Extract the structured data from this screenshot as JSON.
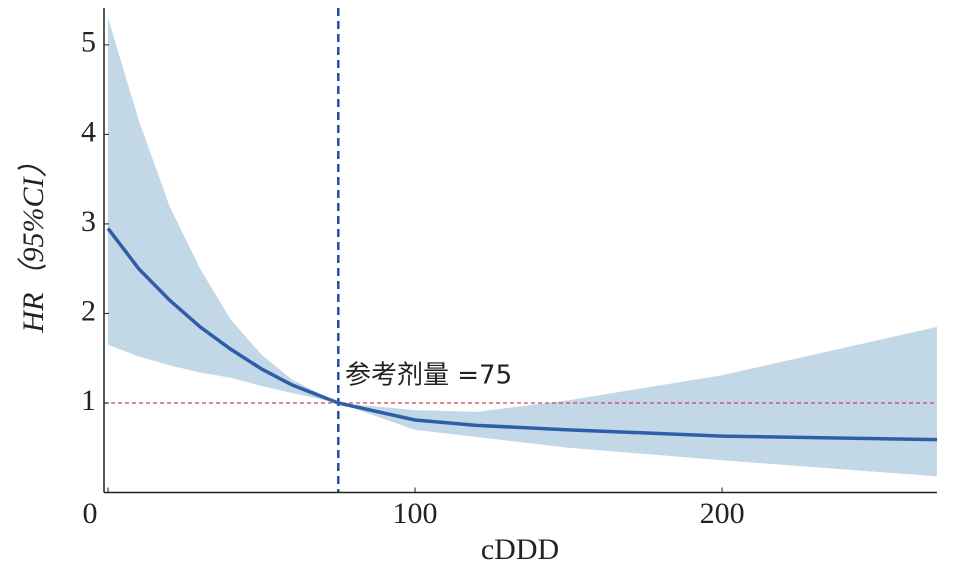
{
  "chart_data": {
    "type": "line",
    "x_label": "cDDD",
    "y_label": "HR（95%CI）",
    "x": [
      0,
      10,
      20,
      30,
      40,
      50,
      60,
      75,
      100,
      120,
      150,
      200,
      270
    ],
    "series": [
      {
        "color": "#2f5ea8",
        "values": [
          2.95,
          2.5,
          2.15,
          1.85,
          1.6,
          1.38,
          1.2,
          1,
          0.81,
          0.75,
          0.7,
          0.63,
          0.59
        ]
      }
    ],
    "band": {
      "color": "#c3d8e7",
      "lower": [
        1.65,
        1.52,
        1.42,
        1.34,
        1.28,
        1.19,
        1.11,
        1,
        0.7,
        0.62,
        0.5,
        0.36,
        0.18
      ],
      "upper": [
        5.3,
        4.16,
        3.2,
        2.5,
        1.93,
        1.54,
        1.26,
        1,
        0.92,
        0.9,
        1.03,
        1.31,
        1.85
      ]
    },
    "reference_lines": [
      {
        "axis": "x",
        "value": 75,
        "color": "#2a4da0"
      },
      {
        "axis": "y",
        "value": 1,
        "color": "#d0465a"
      }
    ],
    "annotation": "参考剂量 =75",
    "xlim": [
      0,
      270
    ],
    "ylim": [
      0,
      5.3
    ],
    "xticks": [
      0,
      100,
      200
    ],
    "yticks": [
      1,
      2,
      3,
      4,
      5
    ]
  }
}
